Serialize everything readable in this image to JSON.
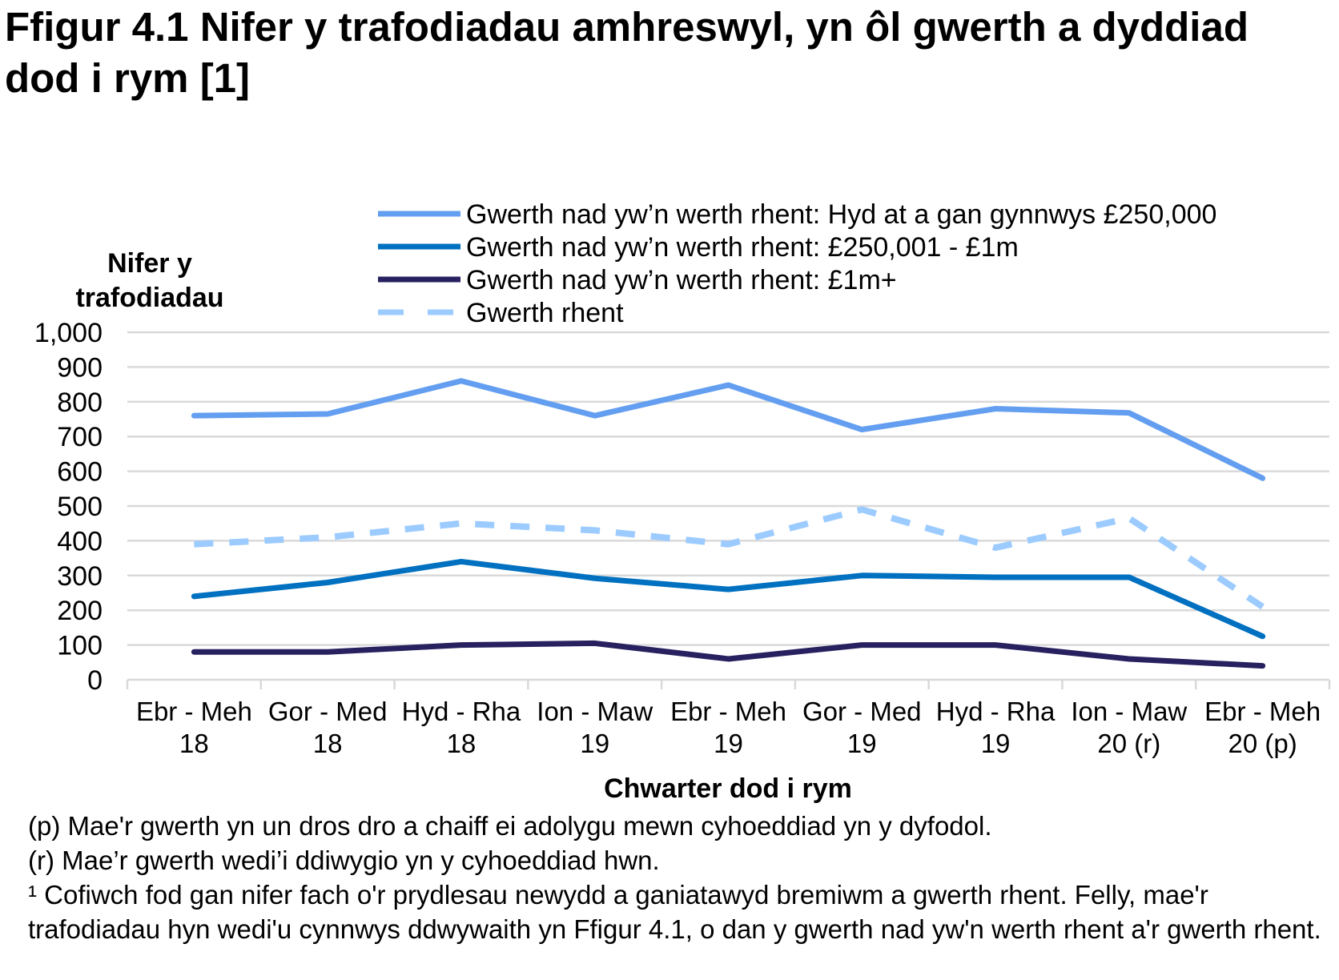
{
  "title": "Ffigur 4.1  Nifer y trafodiadau amhreswyl, yn ôl gwerth a dyddiad dod i rym [1]",
  "chart_data": {
    "type": "line",
    "ylabel": [
      "Nifer y",
      "trafodiadau"
    ],
    "xlabel": "Chwarter dod i rym",
    "categories": [
      [
        "Ebr - Meh",
        "18"
      ],
      [
        "Gor - Med",
        "18"
      ],
      [
        "Hyd - Rha",
        "18"
      ],
      [
        "Ion - Maw",
        "19"
      ],
      [
        "Ebr - Meh",
        "19"
      ],
      [
        "Gor - Med",
        "19"
      ],
      [
        "Hyd - Rha",
        "19"
      ],
      [
        "Ion - Maw",
        "20 (r)"
      ],
      [
        "Ebr - Meh",
        "20 (p)"
      ]
    ],
    "ylim": [
      0,
      1000
    ],
    "yticks": [
      0,
      100,
      200,
      300,
      400,
      500,
      600,
      700,
      800,
      900,
      1000
    ],
    "ytick_labels": [
      "0",
      "100",
      "200",
      "300",
      "400",
      "500",
      "600",
      "700",
      "800",
      "900",
      "1,000"
    ],
    "grid": true,
    "legend_position": "top",
    "series": [
      {
        "name": "Gwerth nad yw’n werth rhent: Hyd at a gan gynnwys £250,000",
        "color": "#639ef0",
        "dash": false,
        "values": [
          760,
          765,
          860,
          760,
          848,
          720,
          780,
          768,
          580
        ]
      },
      {
        "name": "Gwerth nad yw’n werth rhent: £250,001 - £1m",
        "color": "#0070c0",
        "dash": false,
        "values": [
          240,
          280,
          340,
          292,
          260,
          300,
          295,
          295,
          125
        ]
      },
      {
        "name": "Gwerth nad yw’n werth rhent: £1m+",
        "color": "#27215f",
        "dash": false,
        "values": [
          80,
          80,
          100,
          105,
          60,
          100,
          100,
          60,
          40
        ]
      },
      {
        "name": "Gwerth rhent",
        "color": "#9ccbff",
        "dash": true,
        "values": [
          390,
          410,
          450,
          430,
          390,
          490,
          380,
          465,
          210
        ]
      }
    ]
  },
  "notes": [
    "(p) Mae'r gwerth yn un dros dro a chaiff ei adolygu mewn cyhoeddiad yn y dyfodol.",
    "(r) Mae’r gwerth wedi’i ddiwygio yn y cyhoeddiad hwn.",
    "¹ Cofiwch fod gan nifer fach o'r prydlesau newydd a ganiatawyd bremiwm a gwerth rhent. Felly, mae'r trafodiadau hyn wedi'u cynnwys ddwywaith yn Ffigur 4.1, o dan y gwerth nad yw'n werth rhent a'r gwerth rhent."
  ]
}
